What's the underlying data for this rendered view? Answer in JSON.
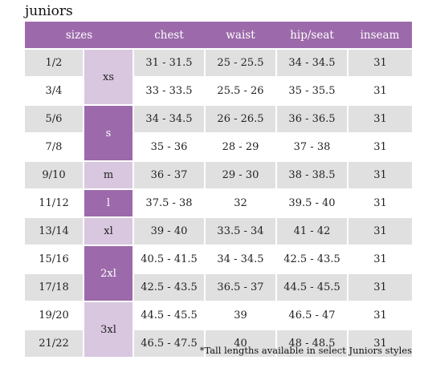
{
  "title": "juniors",
  "headers": {
    "sizes": "sizes",
    "chest": "chest",
    "waist": "waist",
    "hip": "hip/seat",
    "inseam": "inseam"
  },
  "size_groups": [
    {
      "label": "xs",
      "shade": "light"
    },
    {
      "label": "s",
      "shade": "dark"
    },
    {
      "label": "m",
      "shade": "light"
    },
    {
      "label": "l",
      "shade": "dark"
    },
    {
      "label": "xl",
      "shade": "light"
    },
    {
      "label": "2xl",
      "shade": "dark"
    },
    {
      "label": "3xl",
      "shade": "light"
    }
  ],
  "rows": [
    {
      "size": "1/2",
      "chest": "31 - 31.5",
      "waist": "25 - 25.5",
      "hip": "34 - 34.5",
      "inseam": "31"
    },
    {
      "size": "3/4",
      "chest": "33 - 33.5",
      "waist": "25.5 - 26",
      "hip": "35 - 35.5",
      "inseam": "31"
    },
    {
      "size": "5/6",
      "chest": "34 - 34.5",
      "waist": "26 - 26.5",
      "hip": "36 - 36.5",
      "inseam": "31"
    },
    {
      "size": "7/8",
      "chest": "35 - 36",
      "waist": "28 - 29",
      "hip": "37 - 38",
      "inseam": "31"
    },
    {
      "size": "9/10",
      "chest": "36 - 37",
      "waist": "29 - 30",
      "hip": "38 - 38.5",
      "inseam": "31"
    },
    {
      "size": "11/12",
      "chest": "37.5 - 38",
      "waist": "32",
      "hip": "39.5 - 40",
      "inseam": "31"
    },
    {
      "size": "13/14",
      "chest": "39 - 40",
      "waist": "33.5 - 34",
      "hip": "41 - 42",
      "inseam": "31"
    },
    {
      "size": "15/16",
      "chest": "40.5 - 41.5",
      "waist": "34 - 34.5",
      "hip": "42.5 - 43.5",
      "inseam": "31"
    },
    {
      "size": "17/18",
      "chest": "42.5 - 43.5",
      "waist": "36.5 - 37",
      "hip": "44.5 - 45.5",
      "inseam": "31"
    },
    {
      "size": "19/20",
      "chest": "44.5 - 45.5",
      "waist": "39",
      "hip": "46.5 - 47",
      "inseam": "31"
    },
    {
      "size": "21/22",
      "chest": "46.5 - 47.5",
      "waist": "40",
      "hip": "48 - 48.5",
      "inseam": "31"
    }
  ],
  "footnote": "*Tall lengths available in select Juniors styles"
}
